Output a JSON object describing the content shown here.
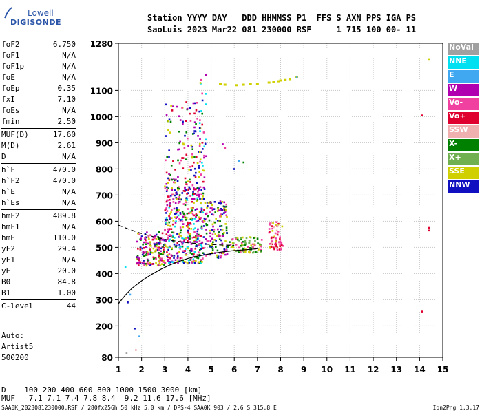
{
  "logo": {
    "line1": "Lowell",
    "line2": "DIGISONDE"
  },
  "header": {
    "line1": "Station YYYY DAY   DDD HHMMSS P1  FFS S AXN PPS IGA PS",
    "line2": "SaoLuis 2023 Mar22 081 230000 RSF     1 715 100 00- 11"
  },
  "params": [
    {
      "k": "foF2",
      "v": "6.750"
    },
    {
      "k": "foF1",
      "v": "N/A"
    },
    {
      "k": "foF1p",
      "v": "N/A"
    },
    {
      "k": "foE",
      "v": "N/A"
    },
    {
      "k": "foEp",
      "v": "0.35"
    },
    {
      "k": "fxI",
      "v": "7.10"
    },
    {
      "k": "foEs",
      "v": "N/A"
    },
    {
      "k": "fmin",
      "v": "2.50"
    },
    {
      "k": "MUF(D)",
      "v": "17.60"
    },
    {
      "k": "M(D)",
      "v": "2.61"
    },
    {
      "k": "D",
      "v": "N/A"
    },
    {
      "k": "h`F",
      "v": "470.0"
    },
    {
      "k": "h`F2",
      "v": "470.0"
    },
    {
      "k": "h`E",
      "v": "N/A"
    },
    {
      "k": "h`Es",
      "v": "N/A"
    },
    {
      "k": "hmF2",
      "v": "489.8"
    },
    {
      "k": "hmF1",
      "v": "N/A"
    },
    {
      "k": "hmE",
      "v": "110.0"
    },
    {
      "k": "yF2",
      "v": "29.4"
    },
    {
      "k": "yF1",
      "v": "N/A"
    },
    {
      "k": "yE",
      "v": "20.0"
    },
    {
      "k": "B0",
      "v": "84.8"
    },
    {
      "k": "B1",
      "v": "1.00"
    },
    {
      "k": "C-level",
      "v": "44"
    }
  ],
  "auto": {
    "line1": "Auto:",
    "line2": "Artist5",
    "line3": "500200"
  },
  "legend": [
    {
      "label": "NoVal",
      "color": "#a0a0a0"
    },
    {
      "label": "NNE",
      "color": "#00e0f0"
    },
    {
      "label": "E",
      "color": "#40a8f0"
    },
    {
      "label": "W",
      "color": "#b000b0"
    },
    {
      "label": "Vo-",
      "color": "#f040a0"
    },
    {
      "label": "Vo+",
      "color": "#e00030"
    },
    {
      "label": "SSW",
      "color": "#f0b0b0"
    },
    {
      "label": "X-",
      "color": "#008000"
    },
    {
      "label": "X+",
      "color": "#70b050"
    },
    {
      "label": "SSE",
      "color": "#d0d000"
    },
    {
      "label": "NNW",
      "color": "#1010c0"
    }
  ],
  "muf_table": {
    "d_label": "D",
    "d_values": [
      "100",
      "200",
      "400",
      "600",
      "800",
      "1000",
      "1500",
      "3000"
    ],
    "d_unit": "[km]",
    "muf_label": "MUF",
    "muf_values": [
      "7.1",
      "7.1",
      "7.4",
      "7.8",
      "8.4",
      "9.2",
      "11.6",
      "17.6"
    ],
    "muf_unit": "[MHz]"
  },
  "footer": {
    "left": "SAA0K_2023081230000.RSF / 280fx256h 50 kHz 5.0 km / DPS-4 SAA0K 903 / 2.6 S 315.8 E",
    "right": "Ion2Png 1.3.17"
  },
  "chart_data": {
    "type": "scatter",
    "xlim": [
      1,
      15
    ],
    "ylim": [
      80,
      1280
    ],
    "x_ticks": [
      1,
      2,
      3,
      4,
      5,
      6,
      7,
      8,
      9,
      10,
      11,
      12,
      13,
      14,
      15
    ],
    "y_ticks": [
      80,
      200,
      300,
      400,
      500,
      600,
      700,
      800,
      900,
      1000,
      1100,
      1280
    ],
    "grid": true,
    "profile_curve": {
      "x": [
        1.0,
        1.3,
        1.6,
        2.0,
        2.4,
        2.8,
        3.2,
        3.6,
        4.0,
        4.5,
        5.0,
        5.5,
        6.0,
        6.5,
        7.0
      ],
      "y": [
        285,
        318,
        345,
        372,
        395,
        415,
        432,
        446,
        458,
        468,
        476,
        483,
        488,
        491,
        495
      ]
    },
    "dashed_curve": {
      "x": [
        1.0,
        1.5,
        2.0,
        2.5,
        3.0,
        3.5,
        4.0,
        4.5,
        5.0,
        5.5,
        6.0
      ],
      "y": [
        585,
        568,
        553,
        541,
        531,
        524,
        518,
        514,
        511,
        509,
        508
      ]
    },
    "trace_clusters": [
      {
        "x": [
          1.8,
          3.0
        ],
        "y": [
          430,
          560
        ],
        "colors": [
          "#f040a0",
          "#b000b0",
          "#008000",
          "#d0d000",
          "#1010c0",
          "#e00030"
        ]
      },
      {
        "x": [
          3.0,
          4.7
        ],
        "y": [
          440,
          720
        ],
        "colors": [
          "#b000b0",
          "#f040a0",
          "#e00030",
          "#d0d000",
          "#008000",
          "#1010c0",
          "#00e0f0"
        ]
      },
      {
        "x": [
          3.0,
          4.7
        ],
        "y": [
          720,
          1060
        ],
        "colors": [
          "#b000b0",
          "#f040a0",
          "#d0d000",
          "#e00030",
          "#1010c0",
          "#008000"
        ]
      },
      {
        "x": [
          4.7,
          5.7
        ],
        "y": [
          460,
          680
        ],
        "colors": [
          "#d0d000",
          "#008000",
          "#b000b0",
          "#f040a0",
          "#1010c0"
        ]
      },
      {
        "x": [
          5.7,
          7.2
        ],
        "y": [
          480,
          540
        ],
        "colors": [
          "#d0d000",
          "#008000",
          "#70b050",
          "#f040a0"
        ]
      },
      {
        "x": [
          7.5,
          8.1
        ],
        "y": [
          490,
          600
        ],
        "colors": [
          "#f040a0",
          "#f0b0b0",
          "#d0d000",
          "#e00030"
        ]
      },
      {
        "x": [
          4.5,
          4.8
        ],
        "y": [
          700,
          1160
        ],
        "colors": [
          "#b000b0",
          "#1010c0",
          "#d0d000",
          "#f040a0",
          "#00e0f0"
        ]
      }
    ],
    "sse_trace": {
      "x": [
        5.4,
        5.6,
        6.1,
        6.4,
        6.7,
        7.0,
        7.5,
        7.7,
        7.9,
        8.0,
        8.2,
        8.4,
        8.7
      ],
      "y": [
        1125,
        1122,
        1120,
        1122,
        1124,
        1125,
        1130,
        1132,
        1135,
        1138,
        1140,
        1143,
        1150
      ]
    },
    "isolated_points": [
      {
        "x": 1.3,
        "y": 425,
        "color": "#00e0f0"
      },
      {
        "x": 1.5,
        "y": 320,
        "color": "#40a8f0"
      },
      {
        "x": 1.4,
        "y": 290,
        "color": "#1010c0"
      },
      {
        "x": 1.7,
        "y": 190,
        "color": "#1010c0"
      },
      {
        "x": 1.9,
        "y": 160,
        "color": "#40a8f0"
      },
      {
        "x": 1.35,
        "y": 95,
        "color": "#a0a0a0"
      },
      {
        "x": 1.75,
        "y": 108,
        "color": "#f0b0b0"
      },
      {
        "x": 14.1,
        "y": 1005,
        "color": "#e00030"
      },
      {
        "x": 14.1,
        "y": 255,
        "color": "#e00030"
      },
      {
        "x": 14.4,
        "y": 565,
        "color": "#e00030"
      },
      {
        "x": 14.4,
        "y": 575,
        "color": "#e00030"
      },
      {
        "x": 14.4,
        "y": 1220,
        "color": "#d0d000"
      },
      {
        "x": 8.7,
        "y": 1150,
        "color": "#40a8f0"
      },
      {
        "x": 6.2,
        "y": 830,
        "color": "#40a8f0"
      },
      {
        "x": 6.4,
        "y": 825,
        "color": "#008000"
      },
      {
        "x": 6.0,
        "y": 800,
        "color": "#1010c0"
      },
      {
        "x": 5.5,
        "y": 895,
        "color": "#b000b0"
      },
      {
        "x": 5.6,
        "y": 880,
        "color": "#f040a0"
      }
    ]
  }
}
